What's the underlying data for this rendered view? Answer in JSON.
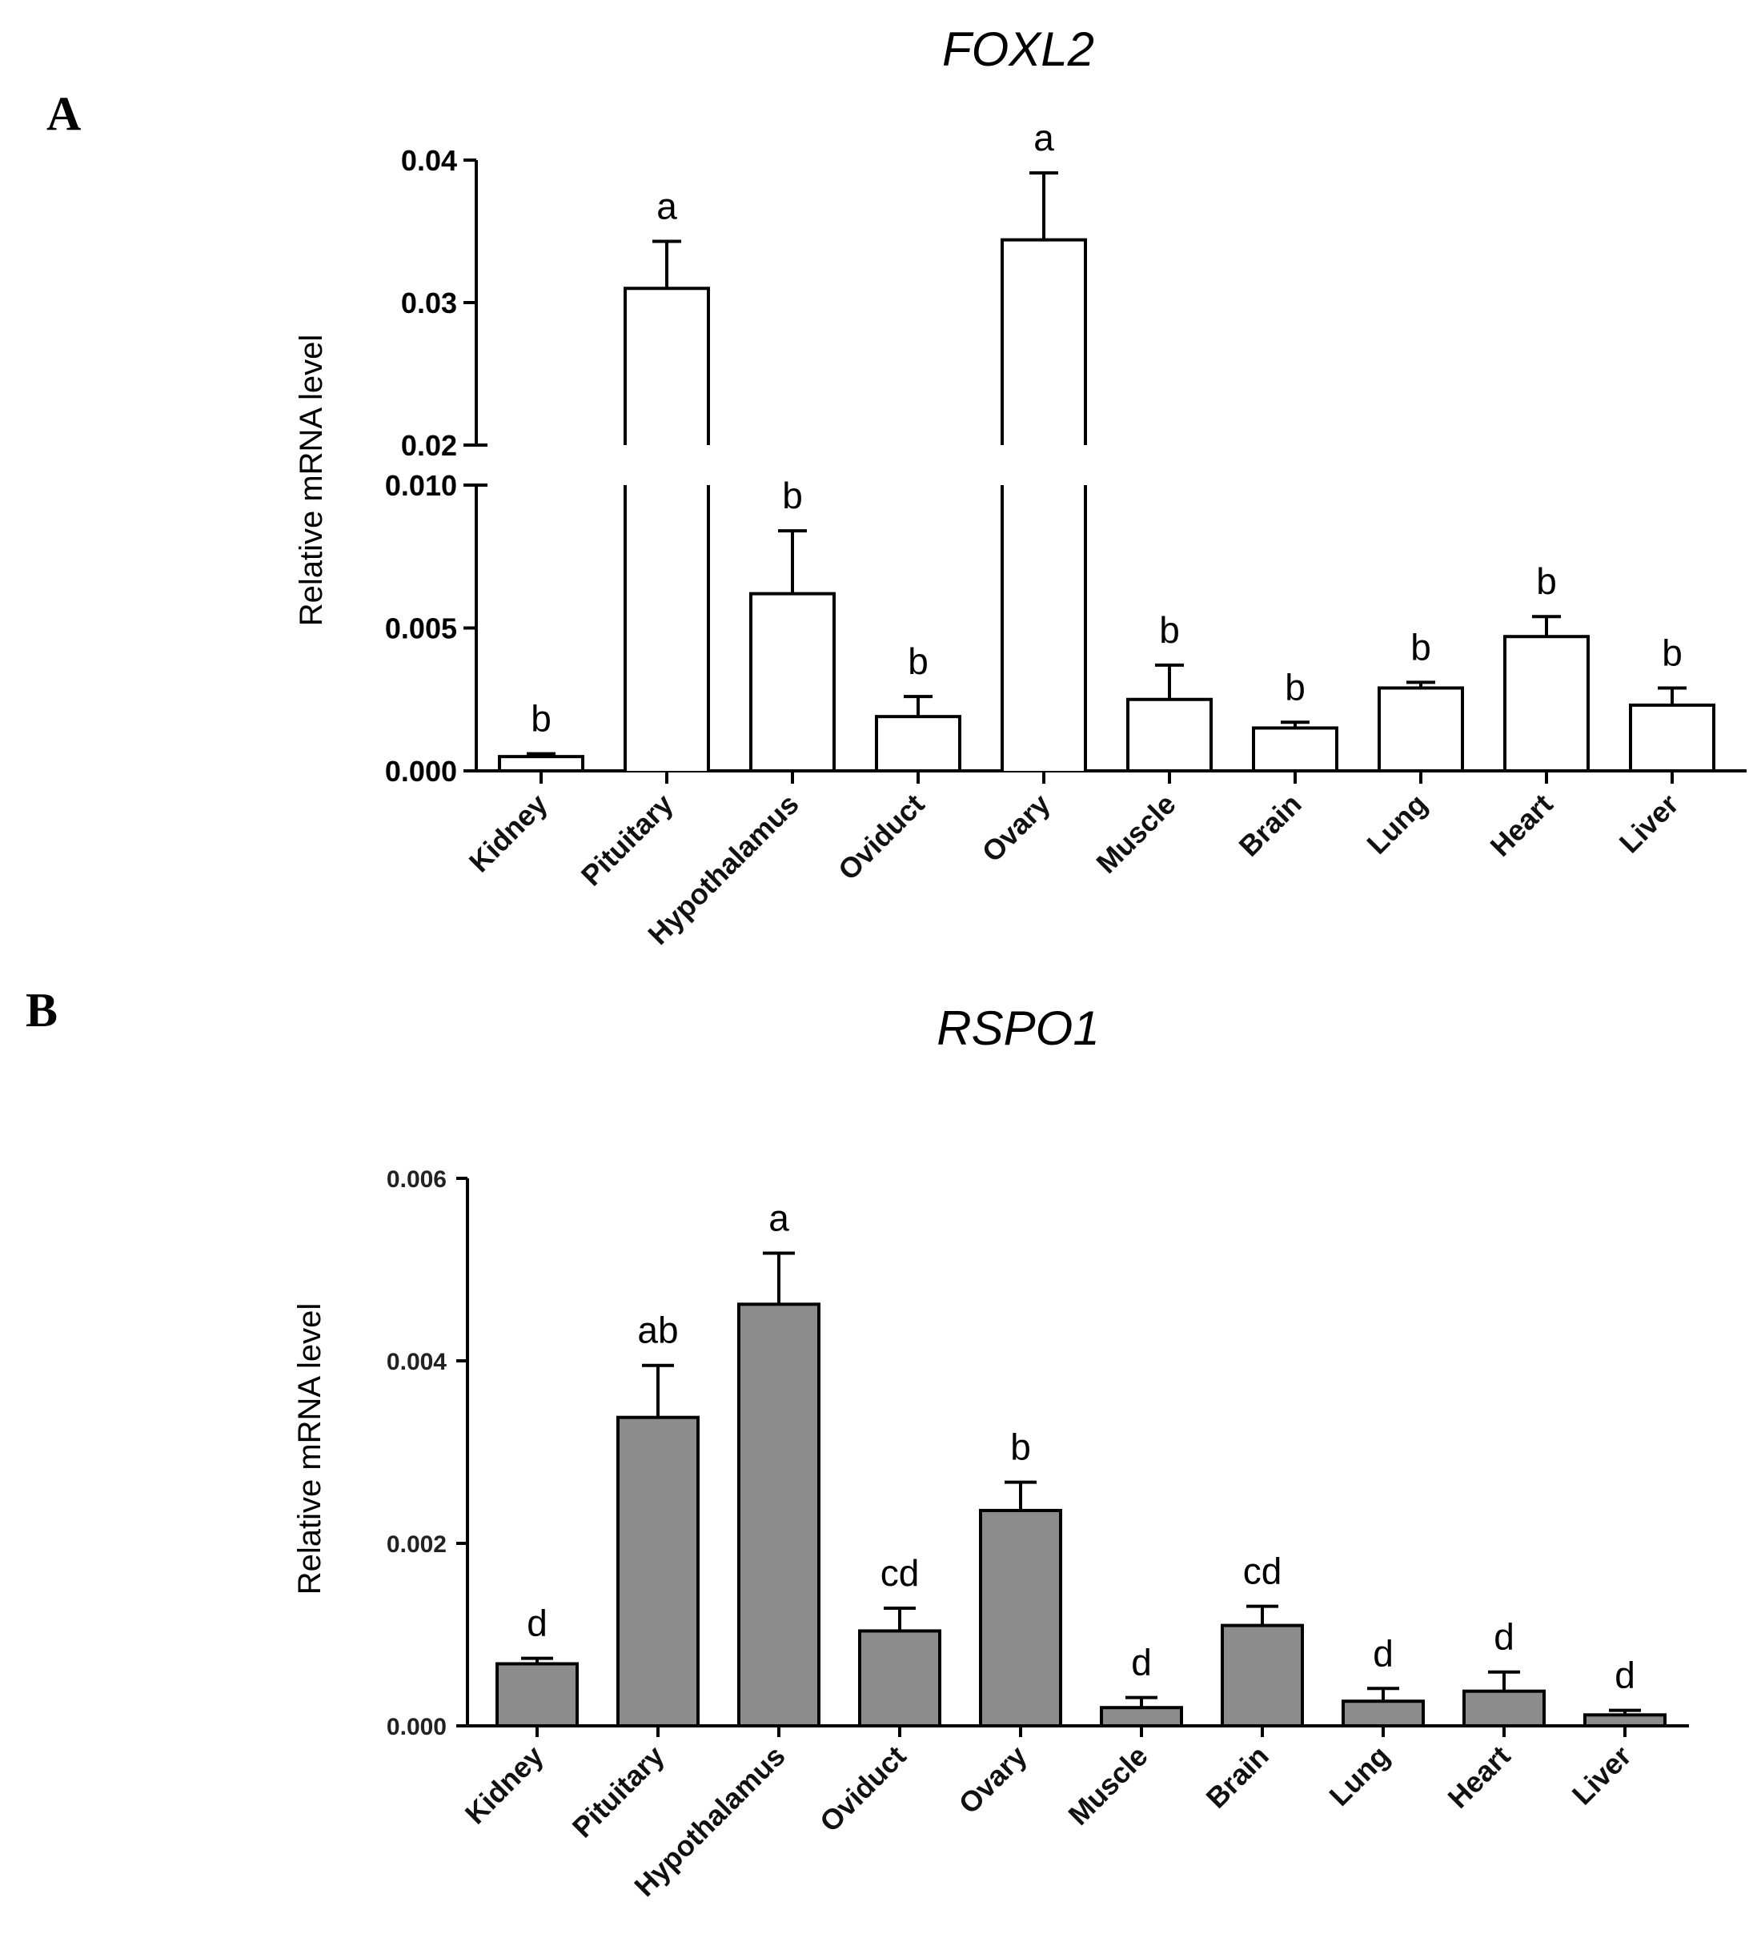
{
  "figure": {
    "panel_a_letter": "A",
    "panel_b_letter": "B"
  },
  "chart_data": [
    {
      "type": "bar",
      "panel": "A",
      "title": "FOXL2",
      "xlabel": "",
      "ylabel": "Relative mRNA level",
      "categories": [
        "Kidney",
        "Pituitary",
        "Hypothalamus",
        "Oviduct",
        "Ovary",
        "Muscle",
        "Brain",
        "Lung",
        "Heart",
        "Liver"
      ],
      "values": [
        0.0005,
        0.031,
        0.0062,
        0.0019,
        0.0344,
        0.0025,
        0.0015,
        0.0029,
        0.0047,
        0.0023
      ],
      "errors": [
        0.0001,
        0.0033,
        0.0022,
        0.0007,
        0.0047,
        0.0012,
        0.0002,
        0.0002,
        0.0007,
        0.0006
      ],
      "significance": [
        "b",
        "a",
        "b",
        "b",
        "a",
        "b",
        "b",
        "b",
        "b",
        "b"
      ],
      "ylim": [
        0,
        0.04
      ],
      "axis_break": [
        0.01,
        0.02
      ],
      "yticks_lower": [
        "0.000",
        "0.005",
        "0.010"
      ],
      "yticks_upper": [
        "0.02",
        "0.03",
        "0.04"
      ],
      "bar_color": "#ffffff"
    },
    {
      "type": "bar",
      "panel": "B",
      "title": "RSPO1",
      "xlabel": "",
      "ylabel": "Relative mRNA level",
      "categories": [
        "Kidney",
        "Pituitary",
        "Hypothalamus",
        "Oviduct",
        "Ovary",
        "Muscle",
        "Brain",
        "Lung",
        "Heart",
        "Liver"
      ],
      "values": [
        0.00068,
        0.00338,
        0.00462,
        0.00104,
        0.00236,
        0.0002,
        0.0011,
        0.00027,
        0.00038,
        0.00012
      ],
      "errors": [
        6e-05,
        0.00057,
        0.00056,
        0.00025,
        0.00031,
        0.00011,
        0.00021,
        0.00014,
        0.00021,
        5e-05
      ],
      "significance": [
        "d",
        "ab",
        "a",
        "cd",
        "b",
        "d",
        "cd",
        "d",
        "d",
        "d"
      ],
      "ylim": [
        0,
        0.006
      ],
      "yticks": [
        "0.000",
        "0.002",
        "0.004",
        "0.006"
      ],
      "bar_color": "#8c8c8c"
    }
  ]
}
